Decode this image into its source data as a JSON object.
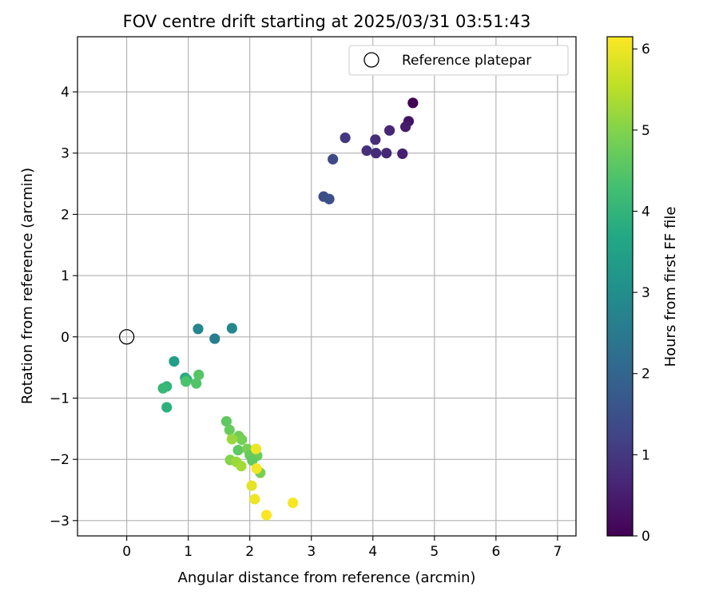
{
  "chart_data": {
    "type": "scatter",
    "title": "FOV centre drift starting at 2025/03/31 03:51:43",
    "xlabel": "Angular distance from reference (arcmin)",
    "ylabel": "Rotation from reference (arcmin)",
    "xlim": [
      -0.8,
      7.3
    ],
    "ylim": [
      -3.25,
      4.9
    ],
    "xticks": [
      0,
      1,
      2,
      3,
      4,
      5,
      6,
      7
    ],
    "yticks": [
      -3,
      -2,
      -1,
      0,
      1,
      2,
      3,
      4
    ],
    "grid": true,
    "legend": {
      "placement": "top-right",
      "entries": [
        "Reference platepar"
      ]
    },
    "reference_point": {
      "x": 0,
      "y": 0,
      "label": "Reference platepar"
    },
    "colorbar": {
      "label": "Hours from first FF file",
      "colormap": "viridis",
      "range": [
        0,
        6.15
      ],
      "ticks": [
        0,
        1,
        2,
        3,
        4,
        5,
        6
      ]
    },
    "points": [
      {
        "x": 4.65,
        "y": 3.82,
        "c": 0.0
      },
      {
        "x": 4.58,
        "y": 3.52,
        "c": 0.3
      },
      {
        "x": 4.53,
        "y": 3.43,
        "c": 0.45
      },
      {
        "x": 4.48,
        "y": 2.99,
        "c": 0.55
      },
      {
        "x": 4.27,
        "y": 3.37,
        "c": 0.65
      },
      {
        "x": 4.22,
        "y": 3.0,
        "c": 0.7
      },
      {
        "x": 4.05,
        "y": 3.0,
        "c": 0.75
      },
      {
        "x": 4.04,
        "y": 3.22,
        "c": 0.8
      },
      {
        "x": 3.9,
        "y": 3.04,
        "c": 0.85
      },
      {
        "x": 3.55,
        "y": 3.25,
        "c": 1.0
      },
      {
        "x": 3.35,
        "y": 2.9,
        "c": 1.35
      },
      {
        "x": 3.2,
        "y": 2.29,
        "c": 1.45
      },
      {
        "x": 3.29,
        "y": 2.25,
        "c": 1.5
      },
      {
        "x": 1.43,
        "y": -0.03,
        "c": 2.6
      },
      {
        "x": 1.71,
        "y": 0.14,
        "c": 2.85
      },
      {
        "x": 1.16,
        "y": 0.13,
        "c": 2.8
      },
      {
        "x": 0.77,
        "y": -0.4,
        "c": 3.45
      },
      {
        "x": 0.95,
        "y": -0.67,
        "c": 3.7
      },
      {
        "x": 0.98,
        "y": -0.7,
        "c": 4.0
      },
      {
        "x": 0.96,
        "y": -0.73,
        "c": 4.4
      },
      {
        "x": 1.17,
        "y": -0.62,
        "c": 4.5
      },
      {
        "x": 1.13,
        "y": -0.76,
        "c": 4.45
      },
      {
        "x": 0.65,
        "y": -0.81,
        "c": 4.0
      },
      {
        "x": 0.59,
        "y": -0.84,
        "c": 4.1
      },
      {
        "x": 0.65,
        "y": -1.15,
        "c": 3.9
      },
      {
        "x": 1.62,
        "y": -1.38,
        "c": 4.6
      },
      {
        "x": 1.67,
        "y": -1.52,
        "c": 4.7
      },
      {
        "x": 1.82,
        "y": -1.62,
        "c": 4.8
      },
      {
        "x": 1.87,
        "y": -1.68,
        "c": 4.85
      },
      {
        "x": 1.71,
        "y": -1.67,
        "c": 5.2
      },
      {
        "x": 1.81,
        "y": -1.85,
        "c": 4.6
      },
      {
        "x": 1.96,
        "y": -1.83,
        "c": 4.9
      },
      {
        "x": 2.0,
        "y": -1.93,
        "c": 4.7
      },
      {
        "x": 2.12,
        "y": -1.94,
        "c": 4.75
      },
      {
        "x": 2.04,
        "y": -2.02,
        "c": 4.65
      },
      {
        "x": 1.68,
        "y": -2.01,
        "c": 5.0
      },
      {
        "x": 1.78,
        "y": -2.04,
        "c": 5.2
      },
      {
        "x": 1.86,
        "y": -2.11,
        "c": 5.3
      },
      {
        "x": 2.17,
        "y": -2.22,
        "c": 4.9
      },
      {
        "x": 2.1,
        "y": -1.83,
        "c": 6.0
      },
      {
        "x": 2.11,
        "y": -2.15,
        "c": 6.05
      },
      {
        "x": 2.03,
        "y": -2.43,
        "c": 5.9
      },
      {
        "x": 2.08,
        "y": -2.65,
        "c": 6.0
      },
      {
        "x": 2.27,
        "y": -2.91,
        "c": 6.1
      },
      {
        "x": 2.7,
        "y": -2.71,
        "c": 6.1
      }
    ]
  }
}
